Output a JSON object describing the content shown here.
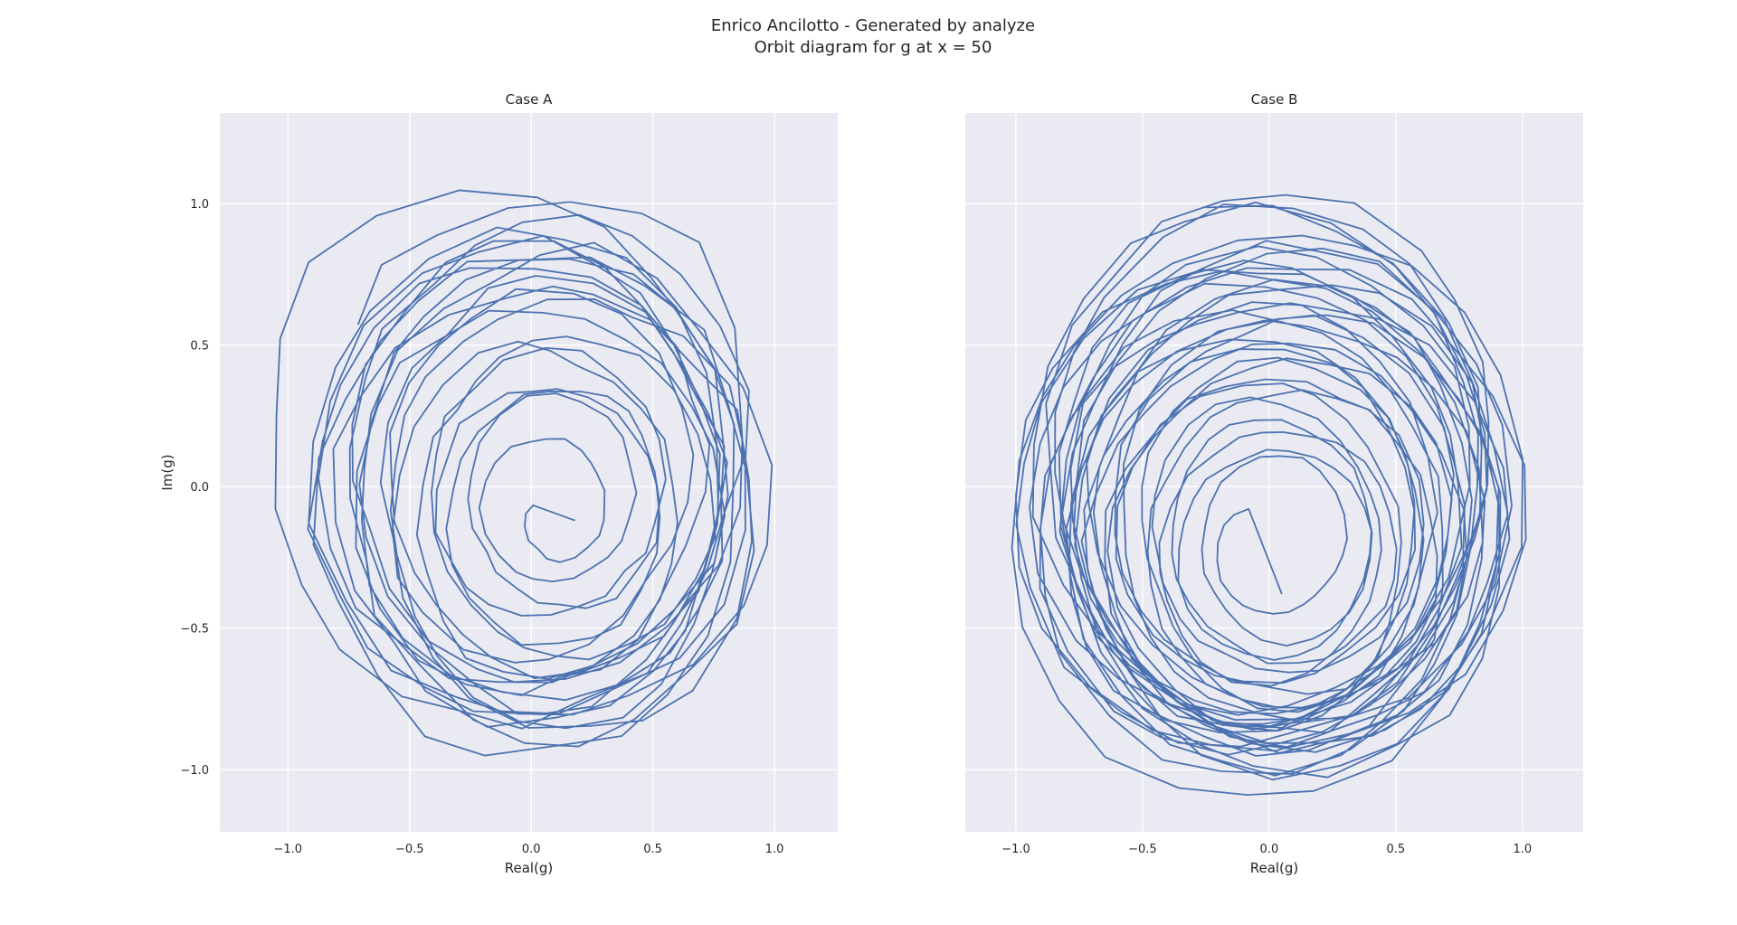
{
  "figure": {
    "suptitle_line1": "Enrico Ancilotto - Generated by analyze",
    "suptitle_line2": "Orbit diagram for g at x = 50",
    "background": "#ffffff",
    "axes_facecolor": "#eaeaf2",
    "grid_color": "#ffffff",
    "line_color": "#4c72b0",
    "grid": true
  },
  "chart_data": [
    {
      "type": "line",
      "title": "Case A",
      "xlabel": "Real(g)",
      "ylabel": "Im(g)",
      "xlim": [
        -1.28,
        1.26
      ],
      "ylim": [
        -1.22,
        1.32
      ],
      "xticks": [
        -1.0,
        -0.5,
        0.0,
        0.5,
        1.0
      ],
      "xtick_labels": [
        "−1.0",
        "−0.5",
        "0.0",
        "0.5",
        "1.0"
      ],
      "yticks": [
        -1.0,
        -0.5,
        0.0,
        0.5,
        1.0
      ],
      "ytick_labels": [
        "−1.0",
        "−0.5",
        "0.0",
        "0.5",
        "1.0"
      ],
      "orbit": {
        "start": [
          0.18,
          -0.12
        ],
        "start_radius": 0.05,
        "end_radius": 1.05,
        "turns": 22,
        "samples_per_turn": 22,
        "wobble": 0.12,
        "center_drift": [
          0.0,
          0.05
        ]
      }
    },
    {
      "type": "line",
      "title": "Case B",
      "xlabel": "Real(g)",
      "ylabel": "",
      "xlim": [
        -1.2,
        1.24
      ],
      "ylim": [
        -1.22,
        1.32
      ],
      "xticks": [
        -1.0,
        -0.5,
        0.0,
        0.5,
        1.0
      ],
      "xtick_labels": [
        "−1.0",
        "−0.5",
        "0.0",
        "0.5",
        "1.0"
      ],
      "yticks": [
        -1.0,
        -0.5,
        0.0,
        0.5,
        1.0
      ],
      "ytick_labels": [],
      "orbit": {
        "start": [
          0.05,
          -0.38
        ],
        "start_radius": 0.15,
        "end_radius": 1.08,
        "turns": 34,
        "samples_per_turn": 24,
        "wobble": 0.07,
        "center_drift": [
          0.0,
          0.0
        ]
      }
    }
  ]
}
